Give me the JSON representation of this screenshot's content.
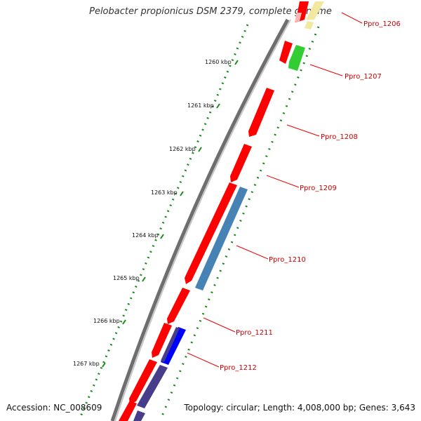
{
  "title": "Pelobacter propionicus DSM 2379, complete genome",
  "accession": "Accession: NC_008609",
  "summary": "Topology: circular; Length: 4,008,000 bp; Genes: 3,643",
  "ticks": [
    "1260 kbp",
    "1261 kbp",
    "1262 kbp",
    "1263 kbp",
    "1264 kbp",
    "1265 kbp",
    "1266 kbp",
    "1267 kbp"
  ],
  "genes": [
    "Ppro_1206",
    "Ppro_1207",
    "Ppro_1208",
    "Ppro_1209",
    "Ppro_1210",
    "Ppro_1211",
    "Ppro_1212"
  ],
  "colors": {
    "red_gene": "#ff0000",
    "blue_gene": "#4682b4",
    "navy_gene": "#483d8b",
    "bright_blue_gene": "#0000ff",
    "green_gene": "#32cd32",
    "gc_dots": "#1a8a1a",
    "label": "#cc0000",
    "backbone": "#888888"
  }
}
